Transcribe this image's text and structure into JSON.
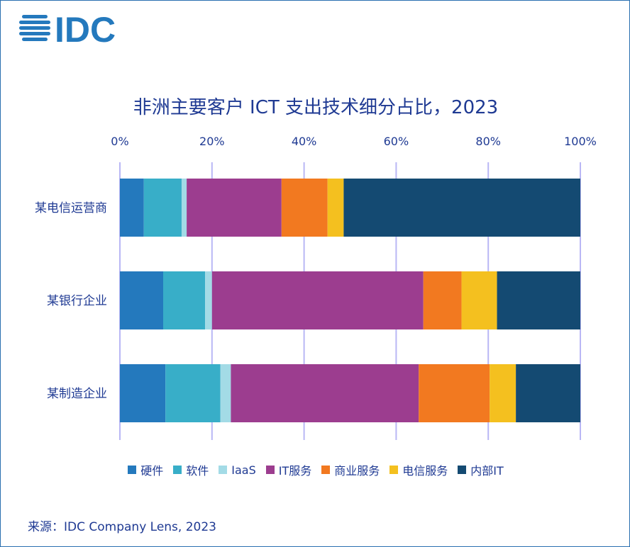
{
  "logo_text": "IDC",
  "chart_data": {
    "type": "bar",
    "orientation": "horizontal",
    "stacked": true,
    "title": "非洲主要客户 ICT 支出技术细分占比，2023",
    "categories": [
      "某电信运营商",
      "某银行企业",
      "某制造企业"
    ],
    "xlim": [
      0,
      100
    ],
    "xticks": [
      "0%",
      "20%",
      "40%",
      "60%",
      "80%",
      "100%"
    ],
    "xaxis_position": "top",
    "grid": true,
    "legend_position": "bottom",
    "series": [
      {
        "name": "硬件",
        "color": "#2479bd",
        "values": [
          5.2,
          9.4,
          9.9
        ]
      },
      {
        "name": "软件",
        "color": "#38aec8",
        "values": [
          8.2,
          9.1,
          11.9
        ]
      },
      {
        "name": "IaaS",
        "color": "#a3dbe6",
        "values": [
          1.1,
          1.5,
          2.3
        ]
      },
      {
        "name": "IT服务",
        "color": "#9c3d8f",
        "values": [
          20.6,
          45.9,
          40.8
        ]
      },
      {
        "name": "商业服务",
        "color": "#f27920",
        "values": [
          10.0,
          8.3,
          15.4
        ]
      },
      {
        "name": "电信服务",
        "color": "#f4c01f",
        "values": [
          3.5,
          7.7,
          5.7
        ]
      },
      {
        "name": "内部IT",
        "color": "#144a72",
        "values": [
          51.4,
          18.1,
          14.0
        ]
      }
    ]
  },
  "source": "来源：IDC Company Lens, 2023"
}
